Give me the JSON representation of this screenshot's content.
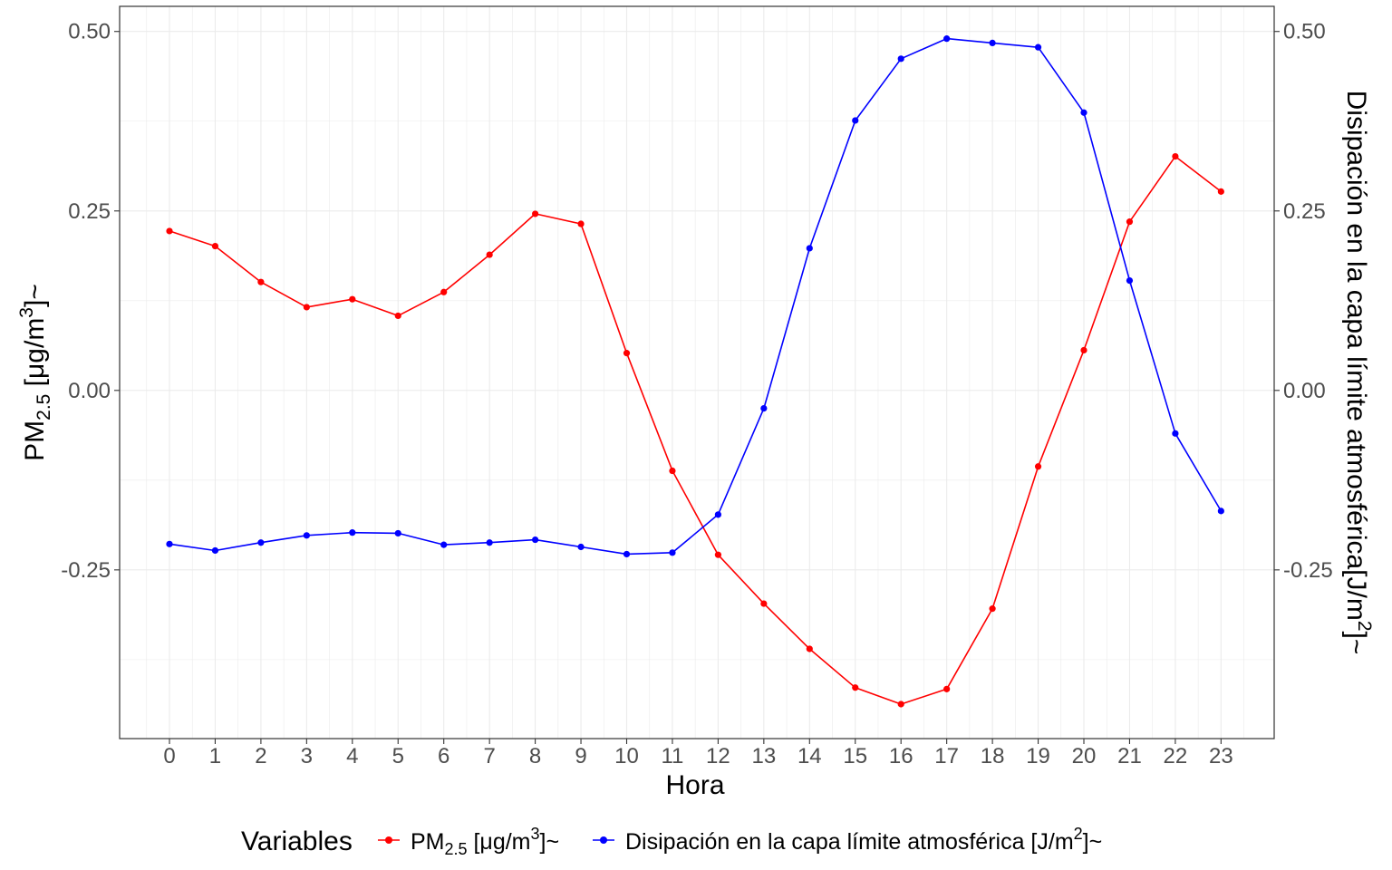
{
  "chart_data": {
    "type": "line",
    "x": [
      0,
      1,
      2,
      3,
      4,
      5,
      6,
      7,
      8,
      9,
      10,
      11,
      12,
      13,
      14,
      15,
      16,
      17,
      18,
      19,
      20,
      21,
      22,
      23
    ],
    "xlabel": "Hora",
    "ylabel": {
      "base": "PM",
      "sub": "2.5",
      "unit_pre": " [μg/m",
      "sup": "3",
      "unit_post": "]~"
    },
    "ylabel_right": {
      "text": "Disipación en la capa límite atmosférica[J/m",
      "sup": "2",
      "post": "]~"
    },
    "ylim": [
      -0.485,
      0.535
    ],
    "yticks": [
      -0.25,
      0.0,
      0.25,
      0.5
    ],
    "ytick_labels": [
      "-0.25",
      "0.00",
      "0.25",
      "0.50"
    ],
    "xticks": [
      "0",
      "1",
      "2",
      "3",
      "4",
      "5",
      "6",
      "7",
      "8",
      "9",
      "10",
      "11",
      "12",
      "13",
      "14",
      "15",
      "16",
      "17",
      "18",
      "19",
      "20",
      "21",
      "22",
      "23"
    ],
    "grid": true,
    "legend": {
      "title": "Variables",
      "placement": "bottom",
      "items": [
        {
          "base": "PM",
          "sub": "2.5",
          "unit_pre": " [μg/m",
          "sup": "3",
          "post": "]~",
          "color": "#ff0000"
        },
        {
          "base": "Disipación en la capa límite atmosférica  [J/m",
          "sup": "2",
          "post": "]~",
          "color": "#0000ff"
        }
      ]
    },
    "series": [
      {
        "color": "#ff0000",
        "values": [
          0.222,
          0.201,
          0.151,
          0.116,
          0.127,
          0.104,
          0.137,
          0.189,
          0.246,
          0.232,
          0.052,
          -0.112,
          -0.229,
          -0.297,
          -0.36,
          -0.414,
          -0.437,
          -0.416,
          -0.304,
          -0.106,
          0.056,
          0.235,
          0.326,
          0.277
        ]
      },
      {
        "color": "#0000ff",
        "values": [
          -0.214,
          -0.223,
          -0.212,
          -0.202,
          -0.198,
          -0.199,
          -0.215,
          -0.212,
          -0.208,
          -0.218,
          -0.228,
          -0.226,
          -0.173,
          -0.025,
          0.198,
          0.376,
          0.462,
          0.49,
          0.484,
          0.478,
          0.387,
          0.153,
          -0.06,
          -0.168
        ]
      }
    ]
  }
}
